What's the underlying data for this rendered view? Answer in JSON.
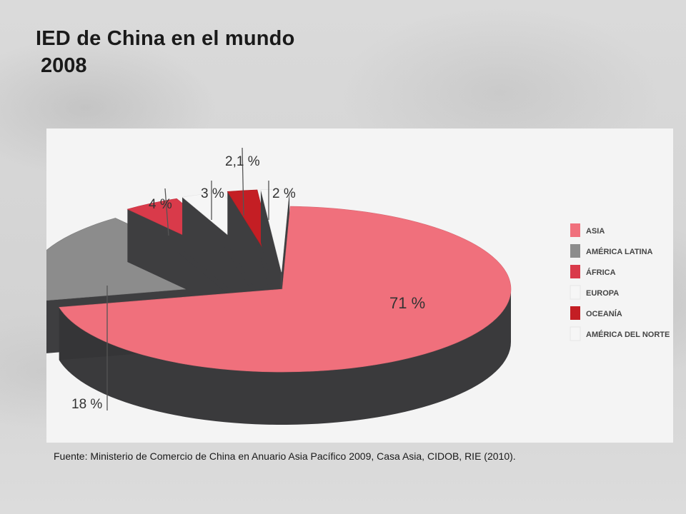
{
  "header": {
    "title": "IED de China en el mundo",
    "subtitle": "2008"
  },
  "source": "Fuente: Ministerio de Comercio de China en Anuario Asia Pacífico 2009, Casa Asia, CIDOB, RIE (2010).",
  "chart_data": {
    "type": "pie",
    "title": "IED de China en el mundo",
    "subtitle": "2008",
    "categories": [
      "ASIA",
      "AMÉRICA LATINA",
      "ÁFRICA",
      "EUROPA",
      "OCEANÍA",
      "AMÉRICA DEL NORTE"
    ],
    "values": [
      71,
      18,
      4,
      3,
      2.1,
      2
    ],
    "value_labels": [
      "71 %",
      "18 %",
      "4 %",
      "3 %",
      "2,1 %",
      "2 %"
    ],
    "colors": [
      "#f0707c",
      "#8c8c8c",
      "#d93a4a",
      "#f6f6f6",
      "#c41e24",
      "#f6f6f6"
    ],
    "legend_position": "right",
    "style": "3d-exploded"
  }
}
